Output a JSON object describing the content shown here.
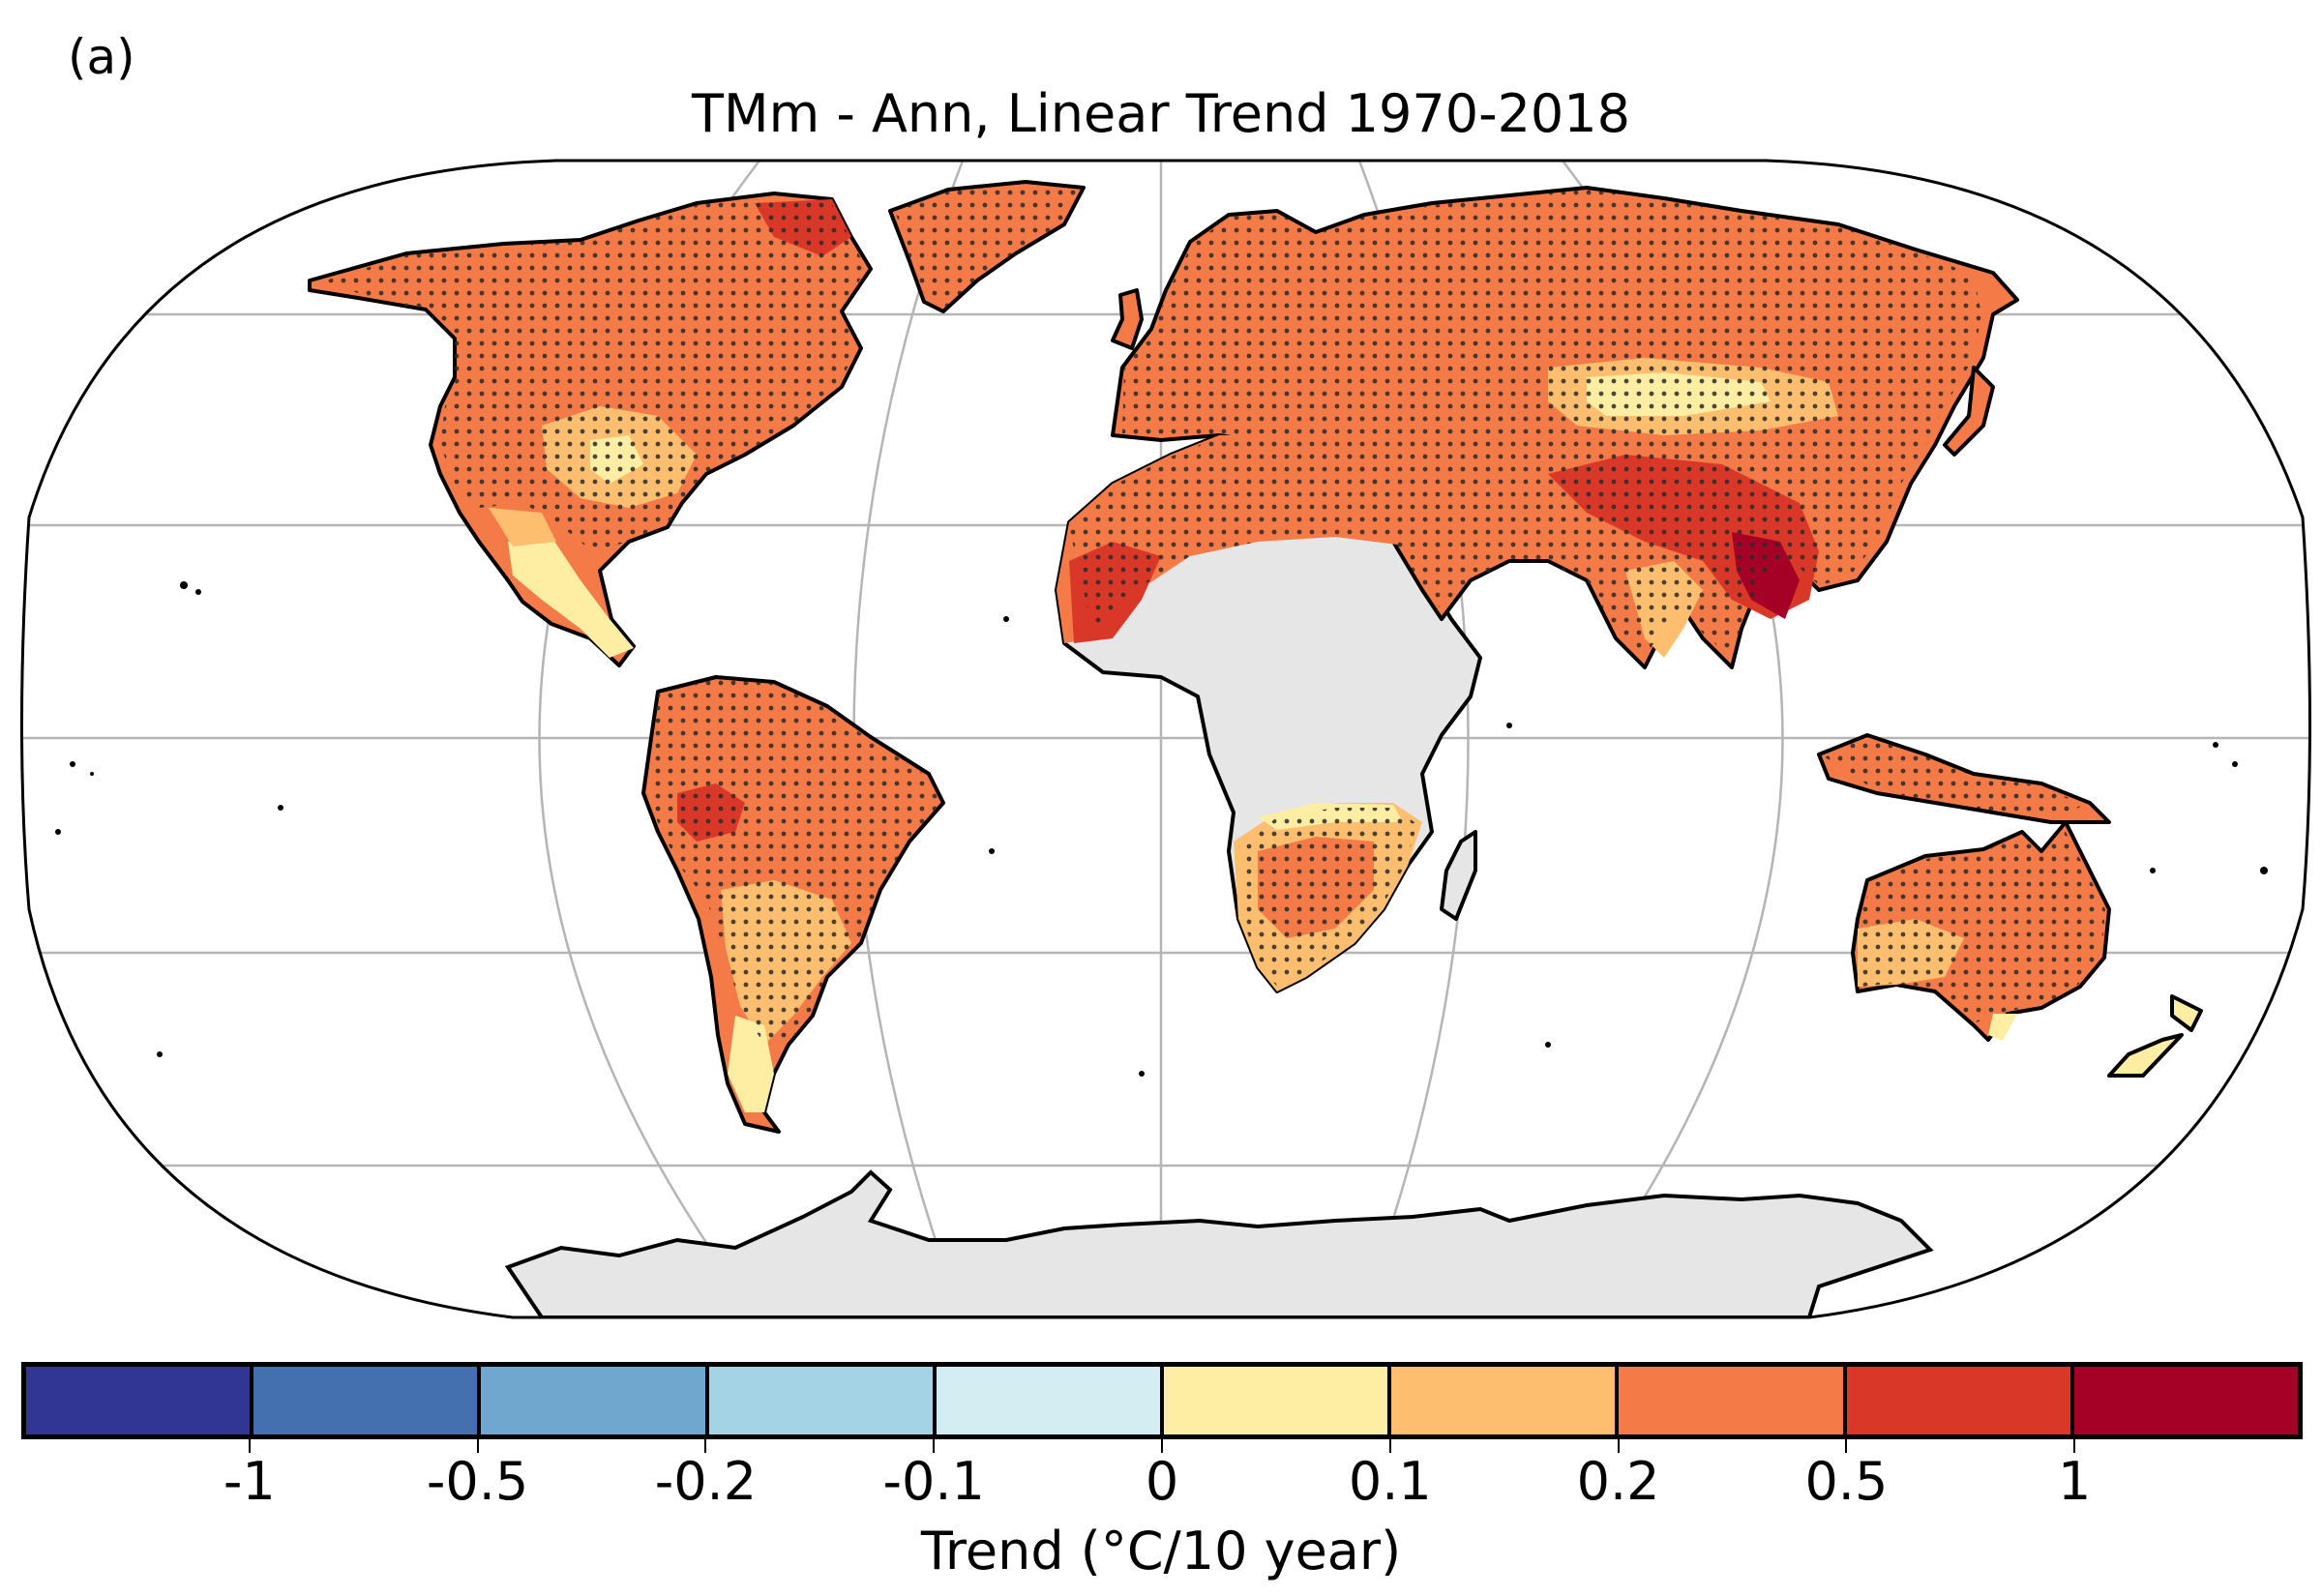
{
  "panel_label": "(a)",
  "title": "TMm - Ann, Linear Trend 1970-2018",
  "colorbar": {
    "label": "Trend (°C/10 year)",
    "colors": [
      "#313695",
      "#4470b0",
      "#6fa7cf",
      "#a4d3e6",
      "#d4edf3",
      "#fdeea4",
      "#fdbf6f",
      "#f47a47",
      "#d93829",
      "#a50026"
    ],
    "tick_labels": [
      "-1",
      "-0.5",
      "-0.2",
      "-0.1",
      "0",
      "0.1",
      "0.2",
      "0.5",
      "1"
    ]
  },
  "map": {
    "projection": "Robinson",
    "missing_data_color": "#e6e6e6",
    "stippling": "significant trend",
    "gridlines": true
  }
}
